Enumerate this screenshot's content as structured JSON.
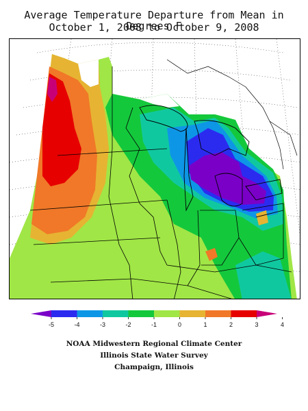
{
  "title_line1": "Average Temperature Departure from Mean in Degrees F",
  "title_line2": "October 1, 2008 to October 9, 2008",
  "legend": {
    "ticks": [
      "-5",
      "-4",
      "-3",
      "-2",
      "-1",
      "0",
      "1",
      "2",
      "3",
      "4"
    ],
    "colors": [
      "#7a00c8",
      "#2b2bf0",
      "#0e96e6",
      "#10c8a0",
      "#14c83c",
      "#a0e646",
      "#e6b432",
      "#f07828",
      "#e60000",
      "#c80078"
    ]
  },
  "credits": {
    "line1": "NOAA Midwestern Regional Climate Center",
    "line2": "Illinois State Water Survey",
    "line3": "Champaign, Illinois"
  }
}
